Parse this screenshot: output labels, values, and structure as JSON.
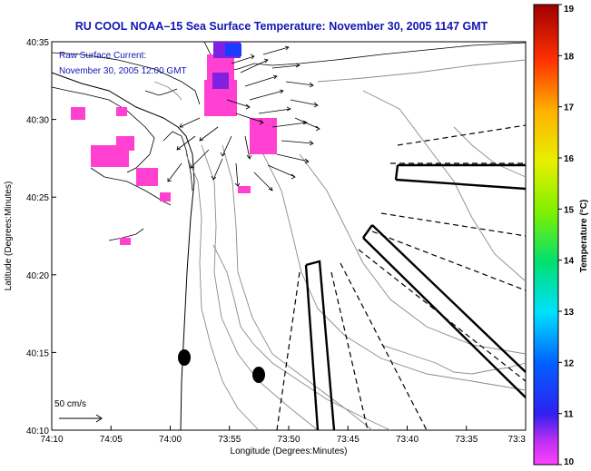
{
  "title": "RU COOL  NOAA–15  Sea Surface Temperature:  November 30, 2005 1147 GMT",
  "annotation": {
    "line1": "Raw Surface Current:",
    "line2": "November 30, 2005 12:00 GMT"
  },
  "scale": {
    "label": "50 cm/s"
  },
  "axes": {
    "xlabel": "Longitude (Degrees:Minutes)",
    "ylabel": "Latitude (Degrees:Minutes)",
    "xticks": [
      "74:10",
      "74:05",
      "74:00",
      "73:55",
      "73:50",
      "73:45",
      "73:40",
      "73:35",
      "73:3"
    ],
    "yticks": [
      "40:35",
      "40:30",
      "40:25",
      "40:20",
      "40:15",
      "40:10"
    ]
  },
  "colorbar": {
    "label": "Temperature (°C)",
    "ticks": [
      "19",
      "18",
      "17",
      "16",
      "15",
      "14",
      "13",
      "12",
      "11",
      "10"
    ],
    "range": [
      10,
      19
    ]
  },
  "colors": {
    "title": "#1414b4",
    "sst_patch": "#ff40d0",
    "sst_cool": "#8020e0",
    "sst_cold": "#1a3cff"
  }
}
